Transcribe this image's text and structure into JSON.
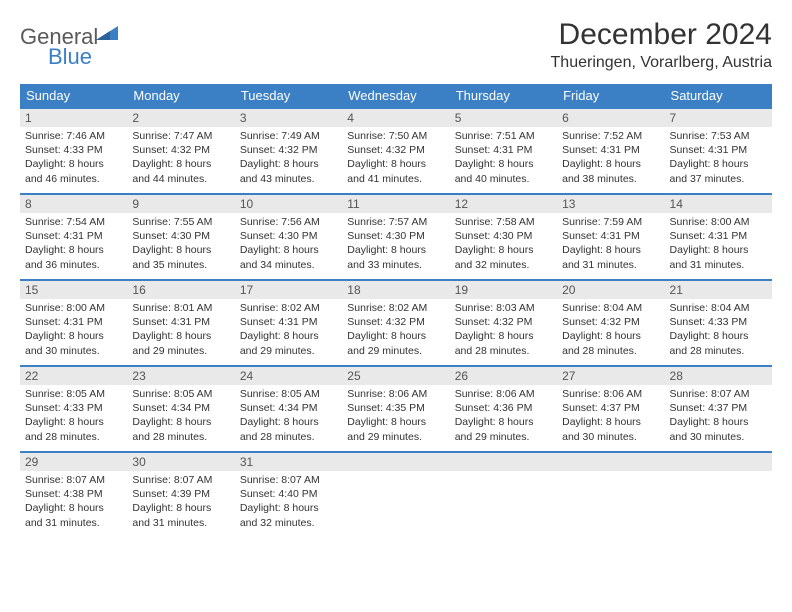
{
  "logo": {
    "part1": "General",
    "part2": "Blue"
  },
  "title": "December 2024",
  "location": "Thueringen, Vorarlberg, Austria",
  "colors": {
    "header_bg": "#3b7fc4",
    "header_text": "#ffffff",
    "daynum_bg": "#e9e9e9",
    "row_divider": "#3b7fc4",
    "logo_gray": "#5a5a5a",
    "logo_blue": "#3b7fc4"
  },
  "weekdays": [
    "Sunday",
    "Monday",
    "Tuesday",
    "Wednesday",
    "Thursday",
    "Friday",
    "Saturday"
  ],
  "weeks": [
    [
      {
        "n": "1",
        "sr": "7:46 AM",
        "ss": "4:33 PM",
        "dl": "8 hours and 46 minutes."
      },
      {
        "n": "2",
        "sr": "7:47 AM",
        "ss": "4:32 PM",
        "dl": "8 hours and 44 minutes."
      },
      {
        "n": "3",
        "sr": "7:49 AM",
        "ss": "4:32 PM",
        "dl": "8 hours and 43 minutes."
      },
      {
        "n": "4",
        "sr": "7:50 AM",
        "ss": "4:32 PM",
        "dl": "8 hours and 41 minutes."
      },
      {
        "n": "5",
        "sr": "7:51 AM",
        "ss": "4:31 PM",
        "dl": "8 hours and 40 minutes."
      },
      {
        "n": "6",
        "sr": "7:52 AM",
        "ss": "4:31 PM",
        "dl": "8 hours and 38 minutes."
      },
      {
        "n": "7",
        "sr": "7:53 AM",
        "ss": "4:31 PM",
        "dl": "8 hours and 37 minutes."
      }
    ],
    [
      {
        "n": "8",
        "sr": "7:54 AM",
        "ss": "4:31 PM",
        "dl": "8 hours and 36 minutes."
      },
      {
        "n": "9",
        "sr": "7:55 AM",
        "ss": "4:30 PM",
        "dl": "8 hours and 35 minutes."
      },
      {
        "n": "10",
        "sr": "7:56 AM",
        "ss": "4:30 PM",
        "dl": "8 hours and 34 minutes."
      },
      {
        "n": "11",
        "sr": "7:57 AM",
        "ss": "4:30 PM",
        "dl": "8 hours and 33 minutes."
      },
      {
        "n": "12",
        "sr": "7:58 AM",
        "ss": "4:30 PM",
        "dl": "8 hours and 32 minutes."
      },
      {
        "n": "13",
        "sr": "7:59 AM",
        "ss": "4:31 PM",
        "dl": "8 hours and 31 minutes."
      },
      {
        "n": "14",
        "sr": "8:00 AM",
        "ss": "4:31 PM",
        "dl": "8 hours and 31 minutes."
      }
    ],
    [
      {
        "n": "15",
        "sr": "8:00 AM",
        "ss": "4:31 PM",
        "dl": "8 hours and 30 minutes."
      },
      {
        "n": "16",
        "sr": "8:01 AM",
        "ss": "4:31 PM",
        "dl": "8 hours and 29 minutes."
      },
      {
        "n": "17",
        "sr": "8:02 AM",
        "ss": "4:31 PM",
        "dl": "8 hours and 29 minutes."
      },
      {
        "n": "18",
        "sr": "8:02 AM",
        "ss": "4:32 PM",
        "dl": "8 hours and 29 minutes."
      },
      {
        "n": "19",
        "sr": "8:03 AM",
        "ss": "4:32 PM",
        "dl": "8 hours and 28 minutes."
      },
      {
        "n": "20",
        "sr": "8:04 AM",
        "ss": "4:32 PM",
        "dl": "8 hours and 28 minutes."
      },
      {
        "n": "21",
        "sr": "8:04 AM",
        "ss": "4:33 PM",
        "dl": "8 hours and 28 minutes."
      }
    ],
    [
      {
        "n": "22",
        "sr": "8:05 AM",
        "ss": "4:33 PM",
        "dl": "8 hours and 28 minutes."
      },
      {
        "n": "23",
        "sr": "8:05 AM",
        "ss": "4:34 PM",
        "dl": "8 hours and 28 minutes."
      },
      {
        "n": "24",
        "sr": "8:05 AM",
        "ss": "4:34 PM",
        "dl": "8 hours and 28 minutes."
      },
      {
        "n": "25",
        "sr": "8:06 AM",
        "ss": "4:35 PM",
        "dl": "8 hours and 29 minutes."
      },
      {
        "n": "26",
        "sr": "8:06 AM",
        "ss": "4:36 PM",
        "dl": "8 hours and 29 minutes."
      },
      {
        "n": "27",
        "sr": "8:06 AM",
        "ss": "4:37 PM",
        "dl": "8 hours and 30 minutes."
      },
      {
        "n": "28",
        "sr": "8:07 AM",
        "ss": "4:37 PM",
        "dl": "8 hours and 30 minutes."
      }
    ],
    [
      {
        "n": "29",
        "sr": "8:07 AM",
        "ss": "4:38 PM",
        "dl": "8 hours and 31 minutes."
      },
      {
        "n": "30",
        "sr": "8:07 AM",
        "ss": "4:39 PM",
        "dl": "8 hours and 31 minutes."
      },
      {
        "n": "31",
        "sr": "8:07 AM",
        "ss": "4:40 PM",
        "dl": "8 hours and 32 minutes."
      },
      null,
      null,
      null,
      null
    ]
  ],
  "labels": {
    "sunrise": "Sunrise:",
    "sunset": "Sunset:",
    "daylight": "Daylight:"
  }
}
